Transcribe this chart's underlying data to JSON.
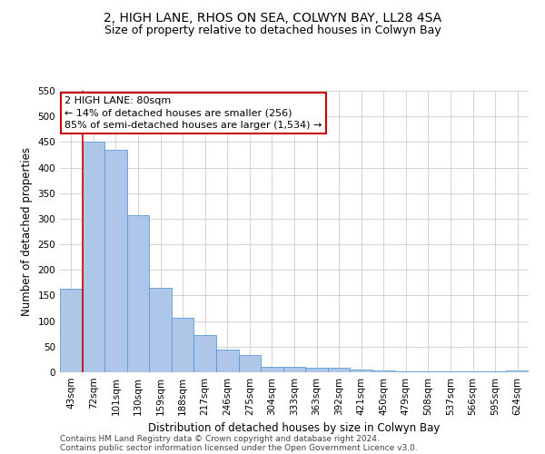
{
  "title": "2, HIGH LANE, RHOS ON SEA, COLWYN BAY, LL28 4SA",
  "subtitle": "Size of property relative to detached houses in Colwyn Bay",
  "xlabel": "Distribution of detached houses by size in Colwyn Bay",
  "ylabel": "Number of detached properties",
  "categories": [
    "43sqm",
    "72sqm",
    "101sqm",
    "130sqm",
    "159sqm",
    "188sqm",
    "217sqm",
    "246sqm",
    "275sqm",
    "304sqm",
    "333sqm",
    "363sqm",
    "392sqm",
    "421sqm",
    "450sqm",
    "479sqm",
    "508sqm",
    "537sqm",
    "566sqm",
    "595sqm",
    "624sqm"
  ],
  "values": [
    163,
    450,
    435,
    307,
    165,
    106,
    73,
    44,
    33,
    10,
    10,
    9,
    8,
    5,
    3,
    2,
    2,
    1,
    1,
    1,
    4
  ],
  "bar_color": "#aec6e8",
  "bar_edge_color": "#5b9bd5",
  "vline_x": 1.5,
  "vline_color": "#cc0000",
  "annotation_title": "2 HIGH LANE: 80sqm",
  "annotation_line1": "← 14% of detached houses are smaller (256)",
  "annotation_line2": "85% of semi-detached houses are larger (1,534) →",
  "annotation_box_color": "#ffffff",
  "annotation_box_edge_color": "#cc0000",
  "ylim": [
    0,
    550
  ],
  "yticks": [
    0,
    50,
    100,
    150,
    200,
    250,
    300,
    350,
    400,
    450,
    500,
    550
  ],
  "footer1": "Contains HM Land Registry data © Crown copyright and database right 2024.",
  "footer2": "Contains public sector information licensed under the Open Government Licence v3.0.",
  "bg_color": "#ffffff",
  "grid_color": "#cccccc",
  "title_fontsize": 10,
  "subtitle_fontsize": 9,
  "axis_label_fontsize": 8.5,
  "tick_fontsize": 7.5,
  "annotation_fontsize": 8,
  "footer_fontsize": 6.5
}
